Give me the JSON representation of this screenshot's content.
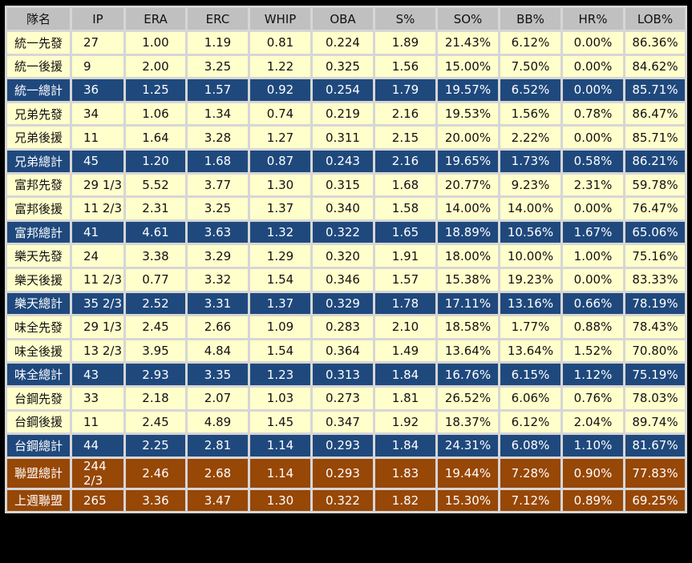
{
  "colors": {
    "header": "#c0c0c0",
    "row": "#ffffcc",
    "team_total": "#1f497d",
    "league": "#974706"
  },
  "headers": [
    "隊名",
    "IP",
    "ERA",
    "ERC",
    "WHIP",
    "OBA",
    "S%",
    "SO%",
    "BB%",
    "HR%",
    "LOB%"
  ],
  "rows": [
    {
      "type": "starter",
      "cells": [
        "統一先發",
        "27",
        "1.00",
        "1.19",
        "0.81",
        "0.224",
        "1.89",
        "21.43%",
        "6.12%",
        "0.00%",
        "86.36%"
      ]
    },
    {
      "type": "relief",
      "cells": [
        "統一後援",
        "9",
        "2.00",
        "3.25",
        "1.22",
        "0.325",
        "1.56",
        "15.00%",
        "7.50%",
        "0.00%",
        "84.62%"
      ]
    },
    {
      "type": "team",
      "cells": [
        "統一總計",
        "36",
        "1.25",
        "1.57",
        "0.92",
        "0.254",
        "1.79",
        "19.57%",
        "6.52%",
        "0.00%",
        "85.71%"
      ]
    },
    {
      "type": "starter",
      "cells": [
        "兄弟先發",
        "34",
        "1.06",
        "1.34",
        "0.74",
        "0.219",
        "2.16",
        "19.53%",
        "1.56%",
        "0.78%",
        "86.47%"
      ]
    },
    {
      "type": "relief",
      "cells": [
        "兄弟後援",
        "11",
        "1.64",
        "3.28",
        "1.27",
        "0.311",
        "2.15",
        "20.00%",
        "2.22%",
        "0.00%",
        "85.71%"
      ]
    },
    {
      "type": "team",
      "cells": [
        "兄弟總計",
        "45",
        "1.20",
        "1.68",
        "0.87",
        "0.243",
        "2.16",
        "19.65%",
        "1.73%",
        "0.58%",
        "86.21%"
      ]
    },
    {
      "type": "starter",
      "cells": [
        "富邦先發",
        "29 1/3",
        "5.52",
        "3.77",
        "1.30",
        "0.315",
        "1.68",
        "20.77%",
        "9.23%",
        "2.31%",
        "59.78%"
      ]
    },
    {
      "type": "relief",
      "cells": [
        "富邦後援",
        "11 2/3",
        "2.31",
        "3.25",
        "1.37",
        "0.340",
        "1.58",
        "14.00%",
        "14.00%",
        "0.00%",
        "76.47%"
      ]
    },
    {
      "type": "team",
      "cells": [
        "富邦總計",
        "41",
        "4.61",
        "3.63",
        "1.32",
        "0.322",
        "1.65",
        "18.89%",
        "10.56%",
        "1.67%",
        "65.06%"
      ]
    },
    {
      "type": "starter",
      "cells": [
        "樂天先發",
        "24",
        "3.38",
        "3.29",
        "1.29",
        "0.320",
        "1.91",
        "18.00%",
        "10.00%",
        "1.00%",
        "75.16%"
      ]
    },
    {
      "type": "relief",
      "cells": [
        "樂天後援",
        "11 2/3",
        "0.77",
        "3.32",
        "1.54",
        "0.346",
        "1.57",
        "15.38%",
        "19.23%",
        "0.00%",
        "83.33%"
      ]
    },
    {
      "type": "team",
      "cells": [
        "樂天總計",
        "35 2/3",
        "2.52",
        "3.31",
        "1.37",
        "0.329",
        "1.78",
        "17.11%",
        "13.16%",
        "0.66%",
        "78.19%"
      ]
    },
    {
      "type": "starter",
      "cells": [
        "味全先發",
        "29 1/3",
        "2.45",
        "2.66",
        "1.09",
        "0.283",
        "2.10",
        "18.58%",
        "1.77%",
        "0.88%",
        "78.43%"
      ]
    },
    {
      "type": "relief",
      "cells": [
        "味全後援",
        "13 2/3",
        "3.95",
        "4.84",
        "1.54",
        "0.364",
        "1.49",
        "13.64%",
        "13.64%",
        "1.52%",
        "70.80%"
      ]
    },
    {
      "type": "team",
      "cells": [
        "味全總計",
        "43",
        "2.93",
        "3.35",
        "1.23",
        "0.313",
        "1.84",
        "16.76%",
        "6.15%",
        "1.12%",
        "75.19%"
      ]
    },
    {
      "type": "starter",
      "cells": [
        "台鋼先發",
        "33",
        "2.18",
        "2.07",
        "1.03",
        "0.273",
        "1.81",
        "26.52%",
        "6.06%",
        "0.76%",
        "78.03%"
      ]
    },
    {
      "type": "relief",
      "cells": [
        "台鋼後援",
        "11",
        "2.45",
        "4.89",
        "1.45",
        "0.347",
        "1.92",
        "18.37%",
        "6.12%",
        "2.04%",
        "89.74%"
      ]
    },
    {
      "type": "team",
      "cells": [
        "台鋼總計",
        "44",
        "2.25",
        "2.81",
        "1.14",
        "0.293",
        "1.84",
        "24.31%",
        "6.08%",
        "1.10%",
        "81.67%"
      ]
    },
    {
      "type": "league",
      "cells": [
        "聯盟總計",
        "244 2/3",
        "2.46",
        "2.68",
        "1.14",
        "0.293",
        "1.83",
        "19.44%",
        "7.28%",
        "0.90%",
        "77.83%"
      ]
    },
    {
      "type": "league",
      "cells": [
        "上週聯盟",
        "265",
        "3.36",
        "3.47",
        "1.30",
        "0.322",
        "1.82",
        "15.30%",
        "7.12%",
        "0.89%",
        "69.25%"
      ]
    }
  ]
}
